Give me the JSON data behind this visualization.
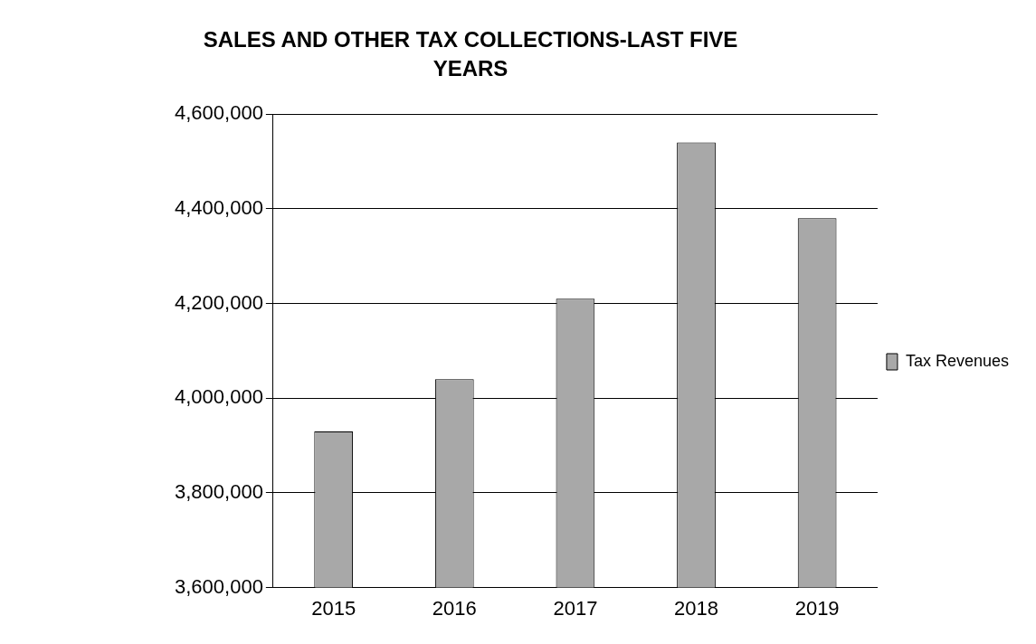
{
  "chart_data": {
    "type": "bar",
    "title": "SALES AND OTHER TAX COLLECTIONS-LAST FIVE YEARS",
    "categories": [
      "2015",
      "2016",
      "2017",
      "2018",
      "2019"
    ],
    "series": [
      {
        "name": "Tax Revenues",
        "color": "#a8a8a8",
        "values": [
          3930000,
          4040000,
          4210000,
          4540000,
          4380000
        ]
      }
    ],
    "ylim": [
      3600000,
      4600000
    ],
    "yticks": [
      {
        "value": 3600000,
        "label": "3,600,000"
      },
      {
        "value": 3800000,
        "label": "3,800,000"
      },
      {
        "value": 4000000,
        "label": "4,000,000"
      },
      {
        "value": 4200000,
        "label": "4,200,000"
      },
      {
        "value": 4400000,
        "label": "4,400,000"
      },
      {
        "value": 4600000,
        "label": "4,600,000"
      }
    ],
    "grid": "y",
    "legend": "right"
  }
}
